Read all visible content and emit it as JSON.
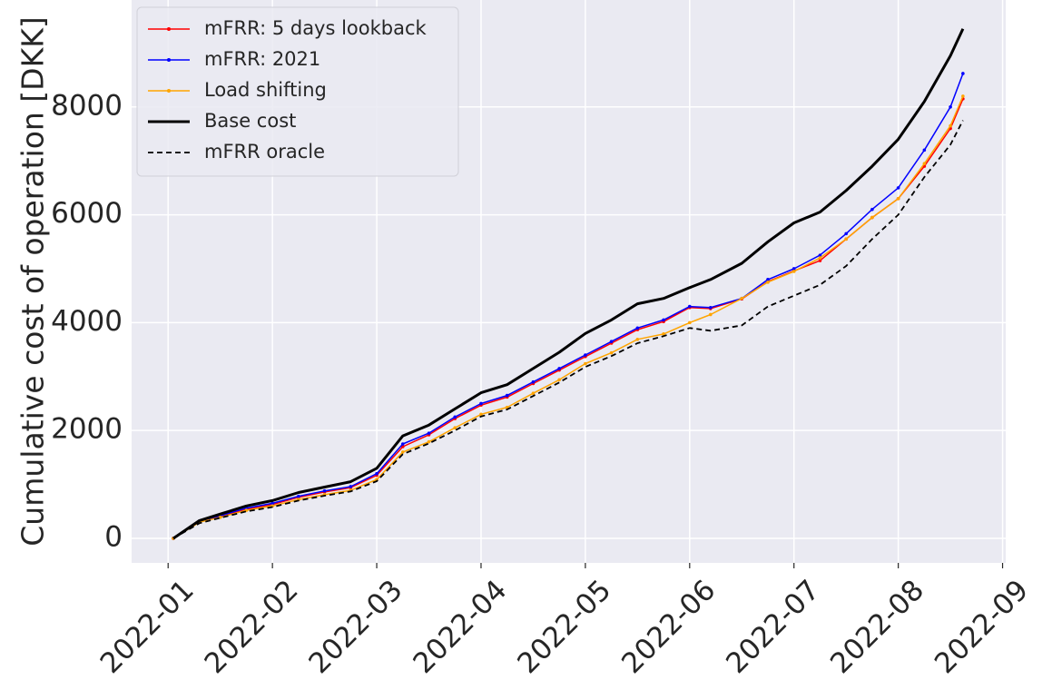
{
  "chart_data": {
    "type": "line",
    "ylabel": "Cumulative cost of operation [DKK]",
    "x": [
      1.05,
      1.3,
      1.5,
      1.75,
      2.0,
      2.25,
      2.5,
      2.75,
      3.0,
      3.25,
      3.5,
      3.75,
      4.0,
      4.25,
      4.5,
      4.75,
      5.0,
      5.25,
      5.5,
      5.75,
      6.0,
      6.2,
      6.5,
      6.75,
      7.0,
      7.25,
      7.5,
      7.75,
      8.0,
      8.25,
      8.5,
      8.62
    ],
    "series": [
      {
        "name": "mFRR: 5 days lookback",
        "color": "#ff0000",
        "linestyle": "solid",
        "marker": true,
        "values": [
          0,
          310,
          400,
          540,
          630,
          760,
          860,
          940,
          1170,
          1700,
          1920,
          2220,
          2470,
          2620,
          2870,
          3120,
          3370,
          3620,
          3870,
          4020,
          4280,
          4260,
          4440,
          4760,
          4960,
          5150,
          5550,
          5950,
          6300,
          6900,
          7600,
          8150
        ]
      },
      {
        "name": "mFRR: 2021",
        "color": "#0000ff",
        "linestyle": "solid",
        "marker": true,
        "values": [
          0,
          320,
          420,
          560,
          650,
          780,
          880,
          960,
          1200,
          1750,
          1950,
          2250,
          2500,
          2650,
          2900,
          3150,
          3400,
          3650,
          3900,
          4050,
          4300,
          4280,
          4450,
          4800,
          5000,
          5250,
          5650,
          6100,
          6500,
          7200,
          8000,
          8620
        ]
      },
      {
        "name": "Load shifting",
        "color": "#ffa500",
        "linestyle": "solid",
        "marker": true,
        "values": [
          0,
          300,
          390,
          520,
          600,
          720,
          810,
          890,
          1090,
          1600,
          1790,
          2050,
          2300,
          2430,
          2690,
          2940,
          3240,
          3440,
          3690,
          3790,
          4000,
          4150,
          4450,
          4750,
          4950,
          5200,
          5550,
          5950,
          6300,
          6950,
          7650,
          8200
        ]
      },
      {
        "name": "Base cost",
        "color": "#000000",
        "linestyle": "solid",
        "marker": false,
        "width": 3,
        "values": [
          0,
          330,
          450,
          600,
          700,
          850,
          950,
          1050,
          1300,
          1900,
          2100,
          2400,
          2700,
          2850,
          3150,
          3450,
          3800,
          4050,
          4350,
          4450,
          4650,
          4800,
          5100,
          5500,
          5850,
          6050,
          6450,
          6900,
          7400,
          8100,
          8950,
          9450
        ]
      },
      {
        "name": "mFRR oracle",
        "color": "#000000",
        "linestyle": "dashed",
        "marker": false,
        "width": 1.8,
        "values": [
          0,
          280,
          380,
          500,
          580,
          700,
          790,
          870,
          1060,
          1560,
          1760,
          2000,
          2260,
          2390,
          2640,
          2890,
          3180,
          3380,
          3620,
          3750,
          3900,
          3850,
          3950,
          4300,
          4500,
          4700,
          5050,
          5550,
          6000,
          6700,
          7300,
          7750
        ]
      }
    ],
    "xlim": [
      0.65,
      9.03
    ],
    "xticks": [
      {
        "value": 1,
        "label": "2022-01"
      },
      {
        "value": 2,
        "label": "2022-02"
      },
      {
        "value": 3,
        "label": "2022-03"
      },
      {
        "value": 4,
        "label": "2022-04"
      },
      {
        "value": 5,
        "label": "2022-05"
      },
      {
        "value": 6,
        "label": "2022-06"
      },
      {
        "value": 7,
        "label": "2022-07"
      },
      {
        "value": 8,
        "label": "2022-08"
      },
      {
        "value": 9,
        "label": "2022-09"
      }
    ],
    "ylim": [
      -455,
      9983
    ],
    "yticks": [
      0,
      2000,
      4000,
      6000,
      8000
    ],
    "grid": true,
    "legend": "upper left"
  }
}
